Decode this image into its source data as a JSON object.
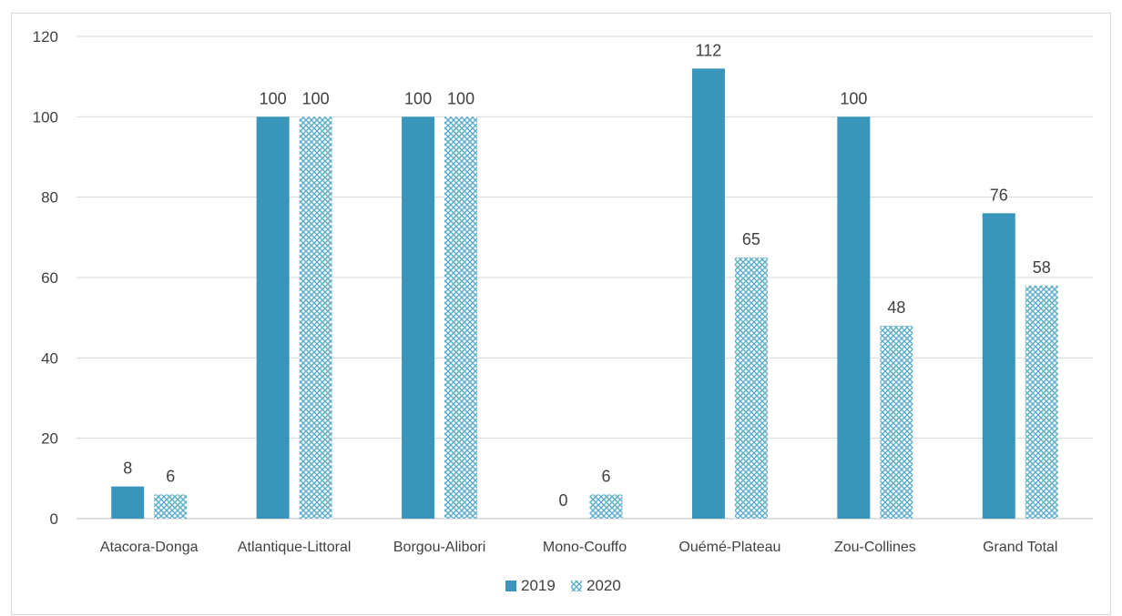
{
  "chart_data": {
    "type": "bar",
    "title": "",
    "xlabel": "",
    "ylabel": "",
    "categories": [
      "Atacora-Donga",
      "Atlantique-Littoral",
      "Borgou-Alibori",
      "Mono-Couffo",
      "Ouémé-Plateau",
      "Zou-Collines",
      "Grand Total"
    ],
    "series": [
      {
        "name": "2019",
        "values": [
          8,
          100,
          100,
          0,
          112,
          100,
          76
        ],
        "color": "#3a95ba",
        "pattern": "solid"
      },
      {
        "name": "2020",
        "values": [
          6,
          100,
          100,
          6,
          65,
          48,
          58
        ],
        "color": "#5aaccb",
        "pattern": "crosshatch"
      }
    ],
    "ylim": [
      0,
      120
    ],
    "yticks": [
      0,
      20,
      40,
      60,
      80,
      100,
      120
    ],
    "grid": true,
    "legend_position": "bottom"
  }
}
